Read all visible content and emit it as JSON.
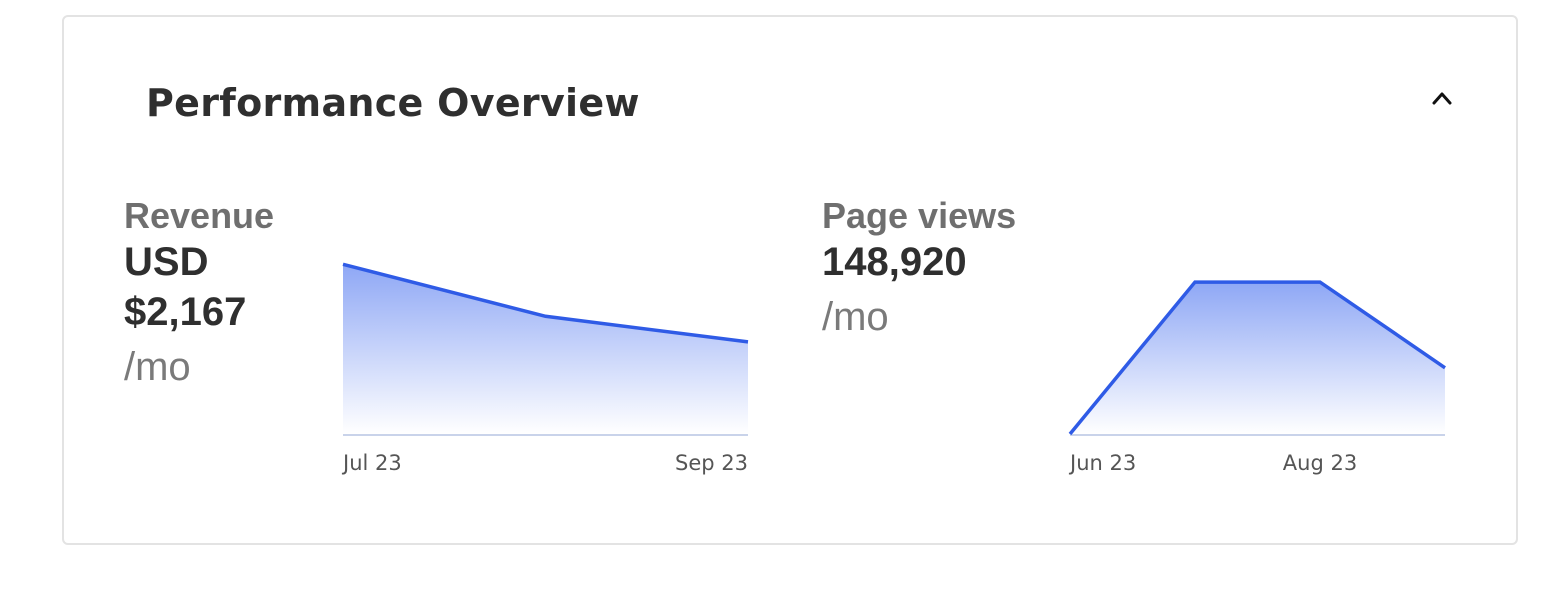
{
  "card": {
    "title": "Performance Overview",
    "collapse_icon": "chevron-up-icon"
  },
  "metrics": [
    {
      "label": "Revenue",
      "value_line1": "USD",
      "value_line2": "$2,167",
      "unit": "/mo"
    },
    {
      "label": "Page views",
      "value_line1": "148,920",
      "unit": "/mo"
    }
  ],
  "colors": {
    "line": "#2f5be6",
    "area_top": "#8ea7f5",
    "area_bottom": "#ffffff",
    "baseline": "#c9d3ea"
  },
  "chart_data": [
    {
      "type": "area",
      "title": "",
      "xlabel": "",
      "ylabel": "",
      "x_ticks": [
        "Jul 23",
        "Sep 23"
      ],
      "x": [
        0,
        1,
        2
      ],
      "series": [
        {
          "values": [
            2450,
            1700,
            1330
          ]
        }
      ],
      "ylim": [
        0,
        2700
      ],
      "grid": false
    },
    {
      "type": "area",
      "title": "",
      "xlabel": "",
      "ylabel": "",
      "x_ticks": [
        "Jun 23",
        "Aug 23"
      ],
      "x": [
        0,
        1,
        2,
        3
      ],
      "series": [
        {
          "values": [
            0,
            195000,
            195000,
            85000
          ]
        }
      ],
      "ylim": [
        0,
        240000
      ],
      "grid": false
    }
  ]
}
